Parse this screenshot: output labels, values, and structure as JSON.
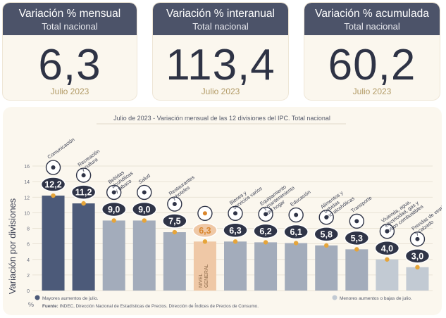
{
  "cards": [
    {
      "id": "mensual",
      "title": "Variación % mensual",
      "subtitle": "Total nacional",
      "value": "6,3",
      "date": "Julio 2023"
    },
    {
      "id": "interanual",
      "title": "Variación % interanual",
      "subtitle": "Total nacional",
      "value": "113,4",
      "date": "Julio 2023"
    },
    {
      "id": "acumulada",
      "title": "Variación % acumulada",
      "subtitle": "Total nacional",
      "value": "60,2",
      "date": "Julio 2023"
    }
  ],
  "colors": {
    "card_header": "#4c5369",
    "bar_high": "#4c5a79",
    "bar_low": "#a3acbb",
    "bar_very_low": "#c2cad3",
    "bar_general": "#efc8a6",
    "dot": "#e6a53a",
    "badge": "#2f3447",
    "accent_text": "#b29b66"
  },
  "chart_data": {
    "type": "bar",
    "title_prefix": "Julio de 2023",
    "title": " - Variación mensual de las 12 divisiones del IPC. Total nacional",
    "ylabel": "Variación por divisiones",
    "yunit": "%",
    "ylim": [
      0,
      16
    ],
    "yticks": [
      0,
      2,
      4,
      6,
      8,
      10,
      12,
      14,
      16
    ],
    "categories": [
      [
        "Comunicación"
      ],
      [
        "Recreación",
        "y cultura"
      ],
      [
        "Bebidas",
        "alcohólicas",
        "y tabaco"
      ],
      [
        "Salud"
      ],
      [
        "Restaurantes",
        "y hoteles"
      ],
      [],
      [
        "Bienes y",
        "servicios varios"
      ],
      [
        "Equipamiento",
        "y mantenimiento",
        "del hogar"
      ],
      [
        "Educación"
      ],
      [
        "Alimentos y",
        "bebidas",
        "no alcohólicas"
      ],
      [
        "Transporte"
      ],
      [
        "Vivienda, agua,",
        "electricidad, gas y",
        "otros combustibles"
      ],
      [
        "Prendas de vestir",
        "y calzado"
      ]
    ],
    "values": [
      12.2,
      11.2,
      9.0,
      9.0,
      7.5,
      6.3,
      6.3,
      6.2,
      6.1,
      5.8,
      5.3,
      4.0,
      3.0
    ],
    "value_labels": [
      "12,2",
      "11,2",
      "9,0",
      "9,0",
      "7,5",
      "6,3",
      "6,3",
      "6,2",
      "6,1",
      "5,8",
      "5,3",
      "4,0",
      "3,0"
    ],
    "groups": [
      "high",
      "high",
      "low",
      "low",
      "low",
      "general",
      "low",
      "low",
      "low",
      "low",
      "low",
      "very_low",
      "very_low"
    ],
    "icons": [
      "phone-icon",
      "sparkle-icon",
      "bottle-icon",
      "medical-cross-icon",
      "cutlery-icon",
      "basket-icon",
      "scissors-icon",
      "briefcase-icon",
      "book-icon",
      "fruit-basket-icon",
      "bus-icon",
      "lightbulb-icon",
      "dress-icon"
    ],
    "general_label": [
      "NIVEL",
      "GENERAL"
    ],
    "legend": [
      {
        "label": "Mayores aumentos de julio.",
        "color": "#4c5a79",
        "position": "bottom-left"
      },
      {
        "label": "Menores aumentos o bajas de julio.",
        "color": "#c2cad3",
        "position": "bottom-right"
      }
    ],
    "source_label": "Fuente:",
    "source": " INDEC, Dirección Nacional de Estadísticas de Precios. Dirección de Índices de Precios de Consumo."
  }
}
